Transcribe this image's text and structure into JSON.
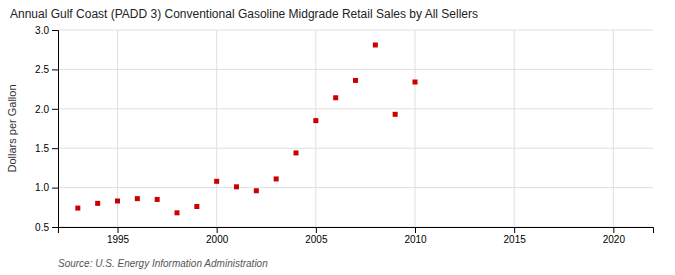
{
  "chart_data": {
    "type": "scatter",
    "title": "Annual Gulf Coast (PADD 3) Conventional Gasoline Midgrade Retail Sales by All Sellers",
    "ylabel": "Dollars per Gallon",
    "annotations": [
      "Source: U.S. Energy Information Administration"
    ],
    "x": [
      1993,
      1994,
      1995,
      1996,
      1997,
      1998,
      1999,
      2000,
      2001,
      2002,
      2003,
      2004,
      2005,
      2006,
      2007,
      2008,
      2009,
      2010
    ],
    "values": [
      0.74,
      0.8,
      0.83,
      0.86,
      0.85,
      0.68,
      0.76,
      1.08,
      1.01,
      0.96,
      1.11,
      1.44,
      1.85,
      2.14,
      2.36,
      2.81,
      1.93,
      2.34
    ],
    "color": "#cc0000",
    "marker": "square",
    "xlim": [
      1992,
      2022
    ],
    "xticks": [
      1995,
      2000,
      2005,
      2010,
      2015,
      2020
    ],
    "ylim": [
      0.5,
      3.0
    ],
    "yticks": [
      0.5,
      {
        "value": 1.0,
        "label": "1.0"
      },
      1.5,
      {
        "value": 2.0,
        "label": "2.0"
      },
      2.5,
      {
        "value": 3.0,
        "label": "3.0"
      }
    ],
    "grid": true
  }
}
